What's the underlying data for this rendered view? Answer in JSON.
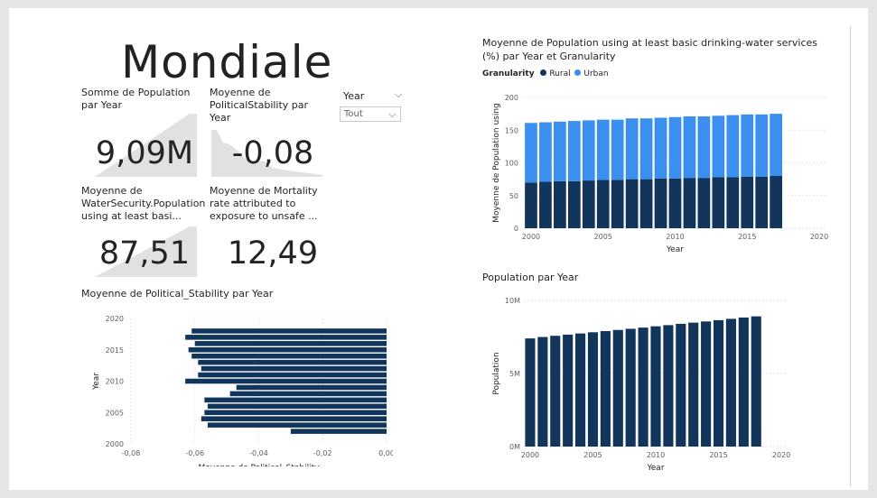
{
  "page": {
    "title": "Mondiale"
  },
  "cards": [
    {
      "title": "Somme de Population par Year",
      "value": "9,09M"
    },
    {
      "title": "Moyenne de PoliticalStability par Year",
      "value": "-0,08"
    },
    {
      "title": "Moyenne de WaterSecurity.Population using at least basi...",
      "value": "87,51"
    },
    {
      "title": "Moyenne de Mortality rate attributed to exposure to unsafe ...",
      "value": "12,49"
    }
  ],
  "slicer": {
    "label": "Year",
    "value": "Tout"
  },
  "colors": {
    "dark": "#12355b",
    "light": "#3b8ff0",
    "sparkline": "#e1e1e1"
  },
  "chart_data": [
    {
      "type": "bar",
      "orientation": "horizontal",
      "title": "Moyenne de Political_Stability par Year",
      "xlabel": "Moyenne de Political_Stability",
      "ylabel": "Year",
      "xlim": [
        -0.08,
        0.0
      ],
      "ylim": [
        2000,
        2020
      ],
      "xticks": [
        "-0,08",
        "-0,06",
        "-0,04",
        "-0,02",
        "0,00"
      ],
      "yticks": [
        "2000",
        "2005",
        "2010",
        "2015",
        "2020"
      ],
      "x": [
        2002,
        2003,
        2004,
        2005,
        2006,
        2007,
        2008,
        2009,
        2010,
        2011,
        2012,
        2013,
        2014,
        2015,
        2016,
        2017,
        2018
      ],
      "values": [
        -0.03,
        -0.056,
        -0.058,
        -0.057,
        -0.056,
        -0.057,
        -0.049,
        -0.047,
        -0.063,
        -0.059,
        -0.058,
        -0.059,
        -0.061,
        -0.062,
        -0.06,
        -0.063,
        -0.061
      ],
      "grid": true
    },
    {
      "type": "bar",
      "stacked": true,
      "title": "Moyenne de Population using at least basic drinking-water services (%) par Year et Granularity",
      "legend_title": "Granularity",
      "xlabel": "Year",
      "ylabel": "Moyenne de Population using",
      "xlim": [
        2000,
        2020
      ],
      "ylim": [
        0,
        200
      ],
      "xticks": [
        "2000",
        "2005",
        "2010",
        "2015",
        "2020"
      ],
      "yticks": [
        "0",
        "50",
        "100",
        "150",
        "200"
      ],
      "x": [
        2000,
        2001,
        2002,
        2003,
        2004,
        2005,
        2006,
        2007,
        2008,
        2009,
        2010,
        2011,
        2012,
        2013,
        2014,
        2015,
        2016,
        2017
      ],
      "series": [
        {
          "name": "Rural",
          "values": [
            70,
            71,
            72,
            72,
            73,
            74,
            74,
            75,
            75,
            76,
            76,
            77,
            77,
            78,
            78,
            79,
            79,
            80
          ]
        },
        {
          "name": "Urban",
          "values": [
            91,
            91,
            91,
            92,
            92,
            92,
            92,
            93,
            93,
            93,
            94,
            94,
            94,
            94,
            95,
            95,
            95,
            95
          ]
        }
      ],
      "legend": "top-left",
      "grid": true
    },
    {
      "type": "bar",
      "title": "Population par Year",
      "xlabel": "Year",
      "ylabel": "Population",
      "xlim": [
        2000,
        2020
      ],
      "ylim": [
        0,
        10000000
      ],
      "xticks": [
        "2000",
        "2005",
        "2010",
        "2015",
        "2020"
      ],
      "yticks": [
        "0M",
        "5M",
        "10M"
      ],
      "x": [
        2000,
        2001,
        2002,
        2003,
        2004,
        2005,
        2006,
        2007,
        2008,
        2009,
        2010,
        2011,
        2012,
        2013,
        2014,
        2015,
        2016,
        2017,
        2018
      ],
      "values": [
        7400000,
        7500000,
        7580000,
        7660000,
        7740000,
        7820000,
        7900000,
        7980000,
        8060000,
        8140000,
        8230000,
        8310000,
        8400000,
        8480000,
        8560000,
        8650000,
        8740000,
        8830000,
        8910000
      ],
      "grid": true
    }
  ]
}
